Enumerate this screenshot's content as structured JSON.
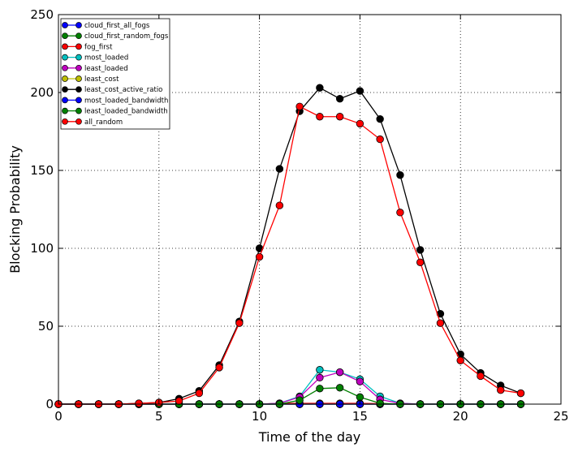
{
  "chart_data": {
    "type": "line",
    "title": "",
    "xlabel": "Time of the day",
    "ylabel": "Blocking Probability",
    "xlim": [
      0,
      25
    ],
    "ylim": [
      0,
      250
    ],
    "xticks": [
      0,
      5,
      10,
      15,
      20,
      25
    ],
    "yticks": [
      0,
      50,
      100,
      150,
      200,
      250
    ],
    "grid": true,
    "legend_position": "top-left",
    "x": [
      0,
      1,
      2,
      3,
      4,
      5,
      6,
      7,
      8,
      9,
      10,
      11,
      12,
      13,
      14,
      15,
      16,
      17,
      18,
      19,
      20,
      21,
      22,
      23
    ],
    "series": [
      {
        "name": "cloud_first_all_fogs",
        "color": "#0000ff",
        "values": [
          0,
          0,
          0,
          0,
          0,
          0,
          0,
          0,
          0,
          0,
          0,
          0,
          0,
          0,
          0,
          0,
          0,
          0,
          0,
          0,
          0,
          0,
          0,
          0
        ]
      },
      {
        "name": "cloud_first_random_fogs",
        "color": "#008000",
        "values": [
          0,
          0,
          0,
          0,
          0,
          0,
          0,
          0,
          0,
          0,
          0,
          0,
          0,
          0,
          0,
          0,
          0,
          0,
          0,
          0,
          0,
          0,
          0,
          0
        ]
      },
      {
        "name": "fog_first",
        "color": "#ff0000",
        "values": [
          0,
          0,
          0,
          0,
          0,
          0,
          0,
          0,
          0,
          0,
          0,
          0.5,
          0.5,
          0.5,
          0.5,
          0.5,
          0.3,
          0,
          0,
          0,
          0,
          0,
          0,
          0
        ]
      },
      {
        "name": "most_loaded",
        "color": "#00bfbf",
        "values": [
          0,
          0,
          0,
          0,
          0,
          0,
          0,
          0,
          0,
          0,
          0,
          0.5,
          5,
          22,
          20.5,
          16,
          5,
          0.5,
          0,
          0,
          0,
          0,
          0,
          0
        ]
      },
      {
        "name": "least_loaded",
        "color": "#bf00bf",
        "values": [
          0,
          0,
          0,
          0,
          0,
          0,
          0,
          0,
          0,
          0,
          0,
          0.5,
          4.5,
          17,
          20.5,
          14.5,
          3,
          0.5,
          0,
          0,
          0,
          0,
          0,
          0
        ]
      },
      {
        "name": "least_cost",
        "color": "#bfbf00",
        "values": [
          0,
          0,
          0,
          0,
          0,
          0,
          0,
          0,
          0,
          0,
          0,
          0,
          0,
          0,
          0,
          0,
          0,
          0,
          0,
          0,
          0,
          0,
          0,
          0
        ]
      },
      {
        "name": "least_cost_active_ratio",
        "color": "#000000",
        "values": [
          0,
          0,
          0,
          0,
          0.5,
          1,
          3.5,
          8.5,
          25,
          53,
          100,
          151,
          188,
          203,
          196,
          201,
          183,
          147,
          99,
          58,
          32,
          20,
          12,
          7
        ]
      },
      {
        "name": "most_loaded_bandwidth",
        "color": "#0000ff",
        "values": [
          0,
          0,
          0,
          0,
          0,
          0,
          0,
          0,
          0,
          0,
          0,
          0,
          0,
          0,
          0,
          0,
          0,
          0,
          0,
          0,
          0,
          0,
          0,
          0
        ]
      },
      {
        "name": "least_loaded_bandwidth",
        "color": "#008000",
        "values": [
          0,
          0,
          0,
          0,
          0,
          0,
          0,
          0,
          0,
          0,
          0,
          0,
          2.5,
          10,
          10.5,
          4.5,
          0.5,
          0,
          0,
          0,
          0,
          0,
          0,
          0
        ]
      },
      {
        "name": "all_random",
        "color": "#ff0000",
        "values": [
          0,
          0,
          0,
          0,
          0.5,
          1,
          2,
          7,
          23.5,
          52,
          94.5,
          127.5,
          191,
          184.5,
          184.5,
          180,
          170,
          123,
          91,
          52,
          28,
          18,
          9,
          7
        ]
      }
    ]
  }
}
